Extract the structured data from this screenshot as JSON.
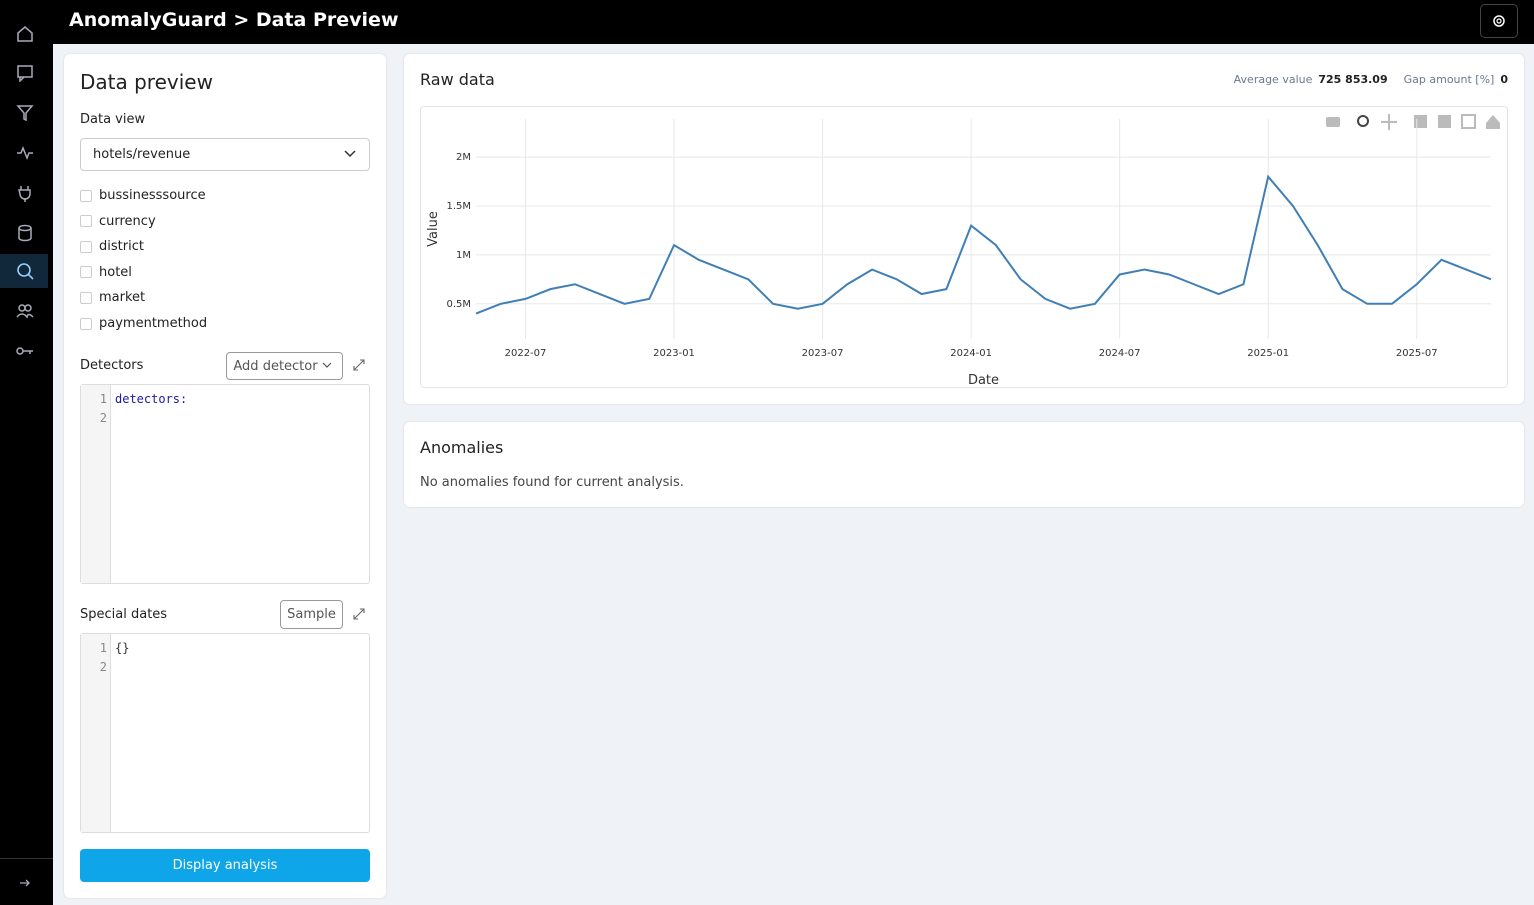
{
  "header": {
    "title": "AnomalyGuard > Data Preview"
  },
  "settings_panel": {
    "title": "Data preview",
    "data_view_label": "Data view",
    "data_view_value": "hotels/revenue",
    "dimensions": [
      "bussinesssource",
      "currency",
      "district",
      "hotel",
      "market",
      "paymentmethod"
    ],
    "detectors_label": "Detectors",
    "add_detector_button": "Add detector",
    "detectors_editor": {
      "line_numbers": [
        1,
        2
      ],
      "lines": [
        "detectors:"
      ]
    },
    "special_dates_label": "Special dates",
    "sample_button": "Sample",
    "special_dates_editor": {
      "line_numbers": [
        1,
        2
      ],
      "lines": [
        "{}"
      ]
    },
    "display_button": "Display analysis"
  },
  "raw_data": {
    "title": "Raw data",
    "stats": [
      {
        "label": "Average value",
        "value": "725 853.09"
      },
      {
        "label": "Gap amount [%]",
        "value": "0"
      }
    ]
  },
  "chart_data": {
    "type": "line",
    "xlabel": "Date",
    "ylabel": "Value",
    "x": [
      "2022-05",
      "2022-06",
      "2022-07",
      "2022-08",
      "2022-09",
      "2022-10",
      "2022-11",
      "2022-12",
      "2023-01",
      "2023-02",
      "2023-03",
      "2023-04",
      "2023-05",
      "2023-06",
      "2023-07",
      "2023-08",
      "2023-09",
      "2023-10",
      "2023-11",
      "2023-12",
      "2024-01",
      "2024-02",
      "2024-03",
      "2024-04",
      "2024-05",
      "2024-06",
      "2024-07",
      "2024-08",
      "2024-09",
      "2024-10",
      "2024-11",
      "2024-12",
      "2025-01",
      "2025-02",
      "2025-03",
      "2025-04",
      "2025-05",
      "2025-06",
      "2025-07",
      "2025-08",
      "2025-09",
      "2025-10"
    ],
    "values": [
      400000,
      500000,
      550000,
      650000,
      700000,
      600000,
      500000,
      550000,
      1100000,
      950000,
      850000,
      750000,
      500000,
      450000,
      500000,
      700000,
      850000,
      750000,
      600000,
      650000,
      1300000,
      1100000,
      750000,
      550000,
      450000,
      500000,
      800000,
      850000,
      800000,
      700000,
      600000,
      700000,
      1800000,
      1500000,
      1100000,
      650000,
      500000,
      500000,
      700000,
      950000,
      850000,
      750000
    ],
    "color": "#3f7fb5",
    "xlim": [
      "2022-05",
      "2025-10"
    ],
    "ylim": [
      140000,
      2390000
    ],
    "xticks": [
      "2022-07",
      "2023-01",
      "2023-07",
      "2024-01",
      "2024-07",
      "2025-01",
      "2025-07"
    ],
    "yticks": [
      {
        "value": 500000,
        "label": "0.5M"
      },
      {
        "value": 1000000,
        "label": "1M"
      },
      {
        "value": 1500000,
        "label": "1.5M"
      },
      {
        "value": 2000000,
        "label": "2M"
      }
    ],
    "grid": true
  },
  "anomalies": {
    "title": "Anomalies",
    "message": "No anomalies found for current analysis."
  }
}
